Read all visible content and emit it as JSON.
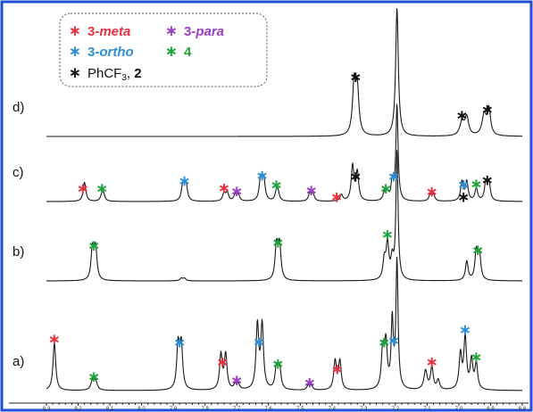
{
  "chart_data": {
    "type": "line",
    "title": "",
    "xlabel": "",
    "ylabel": "",
    "x_reversed": true,
    "xlim": [
      8.3,
      6.8
    ],
    "ticks": [
      "8.3",
      "8.2",
      "8.1",
      "8.0",
      "7.9",
      "7.8",
      "7.7",
      "7.6",
      "7.5",
      "7.4",
      "7.3",
      "7.2",
      "7.1",
      "7.0",
      "6.9",
      "6.8"
    ],
    "grid": false,
    "legend_placement": "top-left",
    "legend": [
      {
        "key": "meta",
        "prefix": "3-",
        "name": "meta",
        "color": "#e8323f",
        "italic": true
      },
      {
        "key": "para",
        "prefix": "3-",
        "name": "para",
        "color": "#9b3fc4",
        "italic": true
      },
      {
        "key": "ortho",
        "prefix": "3-",
        "name": "ortho",
        "color": "#2b8fd8",
        "italic": true
      },
      {
        "key": "four",
        "prefix": "",
        "name": "4",
        "color": "#1fa43b",
        "italic": false
      },
      {
        "key": "ph",
        "prefix": "PhCF",
        "sub": "3",
        "name": ", 2",
        "color": "#111111",
        "italic": false
      }
    ],
    "series": [
      {
        "name": "d)",
        "peaks": [
          [
            7.33,
            0.8,
            0.006
          ],
          [
            7.32,
            0.68,
            0.006
          ],
          [
            7.195,
            2.0,
            0.005
          ],
          [
            6.99,
            0.22,
            0.008
          ],
          [
            6.975,
            0.28,
            0.007
          ],
          [
            6.92,
            0.33,
            0.008
          ],
          [
            6.905,
            0.4,
            0.006
          ]
        ],
        "markers": [
          {
            "x": 7.325,
            "type": "ph"
          },
          {
            "x": 6.99,
            "type": "ph"
          },
          {
            "x": 6.91,
            "type": "ph"
          }
        ]
      },
      {
        "name": "c)",
        "peaks": [
          [
            8.18,
            0.3,
            0.005
          ],
          [
            8.125,
            0.1,
            0.005
          ],
          [
            8.12,
            0.1,
            0.005
          ],
          [
            7.87,
            0.27,
            0.005
          ],
          [
            7.86,
            0.27,
            0.005
          ],
          [
            7.74,
            0.13,
            0.005
          ],
          [
            7.73,
            0.13,
            0.005
          ],
          [
            7.705,
            0.1,
            0.005
          ],
          [
            7.695,
            0.1,
            0.005
          ],
          [
            7.625,
            0.35,
            0.005
          ],
          [
            7.615,
            0.35,
            0.005
          ],
          [
            7.575,
            0.13,
            0.005
          ],
          [
            7.57,
            0.13,
            0.005
          ],
          [
            7.47,
            0.12,
            0.005
          ],
          [
            7.46,
            0.12,
            0.005
          ],
          [
            7.37,
            0.1,
            0.005
          ],
          [
            7.335,
            0.55,
            0.005
          ],
          [
            7.32,
            0.45,
            0.005
          ],
          [
            7.235,
            0.12,
            0.005
          ],
          [
            7.225,
            0.12,
            0.005
          ],
          [
            7.21,
            0.3,
            0.004
          ],
          [
            7.195,
            1.5,
            0.004
          ],
          [
            7.09,
            0.1,
            0.005
          ],
          [
            7.08,
            0.1,
            0.005
          ],
          [
            6.99,
            0.3,
            0.005
          ],
          [
            6.975,
            0.3,
            0.005
          ],
          [
            6.945,
            0.2,
            0.005
          ],
          [
            6.915,
            0.28,
            0.005
          ],
          [
            6.905,
            0.28,
            0.005
          ]
        ],
        "markers": [
          {
            "x": 8.185,
            "type": "meta"
          },
          {
            "x": 8.125,
            "type": "four"
          },
          {
            "x": 7.865,
            "type": "ortho"
          },
          {
            "x": 7.74,
            "type": "meta"
          },
          {
            "x": 7.7,
            "type": "para"
          },
          {
            "x": 7.62,
            "type": "ortho"
          },
          {
            "x": 7.575,
            "type": "four"
          },
          {
            "x": 7.465,
            "type": "para"
          },
          {
            "x": 7.385,
            "type": "meta"
          },
          {
            "x": 7.325,
            "type": "ph"
          },
          {
            "x": 7.23,
            "type": "four"
          },
          {
            "x": 7.205,
            "type": "ortho"
          },
          {
            "x": 7.085,
            "type": "meta"
          },
          {
            "x": 6.985,
            "type": "ortho"
          },
          {
            "x": 6.985,
            "type": "ph"
          },
          {
            "x": 6.945,
            "type": "four"
          },
          {
            "x": 6.91,
            "type": "ph"
          }
        ]
      },
      {
        "name": "b)",
        "peaks": [
          [
            8.155,
            0.5,
            0.005
          ],
          [
            8.145,
            0.5,
            0.005
          ],
          [
            7.875,
            0.04,
            0.005
          ],
          [
            7.865,
            0.04,
            0.005
          ],
          [
            7.575,
            0.55,
            0.005
          ],
          [
            7.565,
            0.55,
            0.005
          ],
          [
            7.235,
            0.3,
            0.005
          ],
          [
            7.225,
            0.55,
            0.005
          ],
          [
            7.21,
            0.3,
            0.005
          ],
          [
            7.195,
            2.0,
            0.004
          ],
          [
            6.975,
            0.3,
            0.005
          ],
          [
            6.945,
            0.45,
            0.005
          ],
          [
            6.935,
            0.4,
            0.005
          ]
        ],
        "markers": [
          {
            "x": 8.15,
            "type": "four"
          },
          {
            "x": 7.57,
            "type": "four"
          },
          {
            "x": 7.225,
            "type": "four"
          },
          {
            "x": 6.94,
            "type": "four"
          }
        ]
      },
      {
        "name": "a)",
        "peaks": [
          [
            8.275,
            0.75,
            0.005
          ],
          [
            8.155,
            0.14,
            0.006
          ],
          [
            8.145,
            0.14,
            0.006
          ],
          [
            7.885,
            0.7,
            0.005
          ],
          [
            7.875,
            0.7,
            0.005
          ],
          [
            7.75,
            0.55,
            0.005
          ],
          [
            7.735,
            0.55,
            0.005
          ],
          [
            7.705,
            0.08,
            0.005
          ],
          [
            7.695,
            0.08,
            0.005
          ],
          [
            7.635,
            1.0,
            0.005
          ],
          [
            7.62,
            1.0,
            0.005
          ],
          [
            7.575,
            0.35,
            0.005
          ],
          [
            7.565,
            0.35,
            0.005
          ],
          [
            7.475,
            0.07,
            0.005
          ],
          [
            7.465,
            0.07,
            0.005
          ],
          [
            7.39,
            0.45,
            0.005
          ],
          [
            7.375,
            0.45,
            0.005
          ],
          [
            7.24,
            0.6,
            0.005
          ],
          [
            7.23,
            0.7,
            0.005
          ],
          [
            7.21,
            1.05,
            0.004
          ],
          [
            7.195,
            2.0,
            0.004
          ],
          [
            7.105,
            0.3,
            0.006
          ],
          [
            7.085,
            0.35,
            0.005
          ],
          [
            7.065,
            0.15,
            0.005
          ],
          [
            6.995,
            0.55,
            0.005
          ],
          [
            6.98,
            0.8,
            0.005
          ],
          [
            6.96,
            0.45,
            0.005
          ],
          [
            6.945,
            0.4,
            0.005
          ]
        ],
        "markers": [
          {
            "x": 8.275,
            "type": "meta"
          },
          {
            "x": 8.15,
            "type": "four"
          },
          {
            "x": 7.88,
            "type": "ortho"
          },
          {
            "x": 7.745,
            "type": "meta"
          },
          {
            "x": 7.7,
            "type": "para"
          },
          {
            "x": 7.63,
            "type": "ortho"
          },
          {
            "x": 7.57,
            "type": "four"
          },
          {
            "x": 7.47,
            "type": "para"
          },
          {
            "x": 7.383,
            "type": "meta"
          },
          {
            "x": 7.235,
            "type": "four"
          },
          {
            "x": 7.205,
            "type": "ortho"
          },
          {
            "x": 7.085,
            "type": "meta"
          },
          {
            "x": 6.98,
            "type": "ortho"
          },
          {
            "x": 6.945,
            "type": "four"
          }
        ]
      }
    ]
  }
}
